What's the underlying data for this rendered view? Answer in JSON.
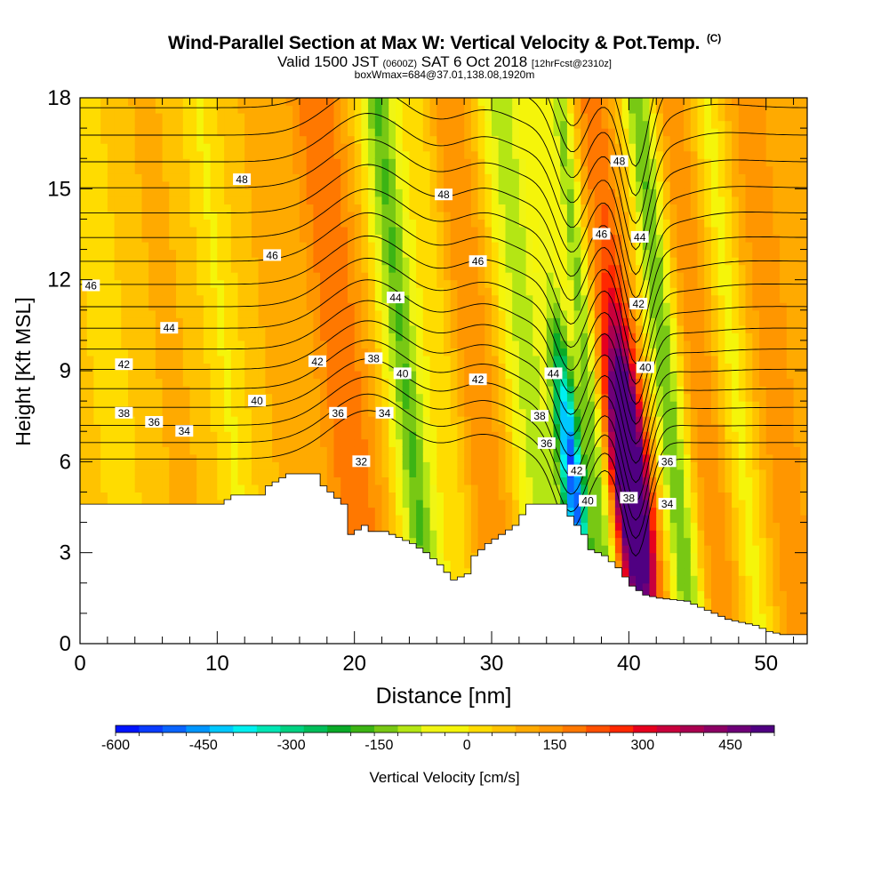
{
  "title": {
    "line1": "Wind-Parallel Section at Max W: Vertical Velocity & Pot.Temp.",
    "copyright": "(C)",
    "line2_main": "Valid 1500 JST",
    "line2_utc": "(0600Z)",
    "line2_date": "SAT 6 Oct 2018",
    "line2_fcst": "[12hrFcst@2310z]",
    "line3": "boxWmax=684@37.01,138.08,1920m"
  },
  "colors": {
    "terrain": "#ffffff",
    "contour": "#000000",
    "frame": "#000000"
  },
  "chart_data": {
    "type": "heatmap",
    "xlabel": "Distance [nm]",
    "ylabel": "Height [Kft MSL]",
    "xlim": [
      0,
      53
    ],
    "ylim": [
      0,
      18
    ],
    "x_ticks": [
      "0",
      "10",
      "20",
      "30",
      "40",
      "50"
    ],
    "y_ticks": [
      "0",
      "3",
      "6",
      "9",
      "12",
      "15",
      "18"
    ],
    "colorbar": {
      "label": "Vertical Velocity [cm/s]",
      "tick_labels": [
        "-600",
        "-450",
        "-300",
        "-150",
        "0",
        "150",
        "300",
        "450"
      ],
      "min": -600,
      "max": 525,
      "step": 37.5,
      "colors": [
        "#0014ff",
        "#0a3cff",
        "#0a64ff",
        "#0096ff",
        "#00c8ff",
        "#00f0f0",
        "#00e6b4",
        "#00d282",
        "#00be5a",
        "#0aaa28",
        "#3cb414",
        "#78c814",
        "#b4e614",
        "#f0f514",
        "#f5f50a",
        "#ffdc00",
        "#ffc300",
        "#ffaa00",
        "#ff9600",
        "#ff7800",
        "#ff5000",
        "#ff2800",
        "#e6001e",
        "#c8003c",
        "#aa0050",
        "#8c0064",
        "#6e0078",
        "#500082"
      ]
    },
    "terrain_profile": [
      [
        0,
        4.6
      ],
      [
        5,
        4.6
      ],
      [
        10,
        4.6
      ],
      [
        11,
        4.9
      ],
      [
        13,
        4.9
      ],
      [
        13.5,
        5.2
      ],
      [
        15,
        5.6
      ],
      [
        17,
        5.6
      ],
      [
        17.5,
        5.2
      ],
      [
        19,
        4.6
      ],
      [
        19.2,
        4.3
      ],
      [
        19.5,
        3.6
      ],
      [
        20.5,
        3.9
      ],
      [
        21,
        3.7
      ],
      [
        22,
        3.7
      ],
      [
        23,
        3.5
      ],
      [
        24,
        3.3
      ],
      [
        25,
        3.0
      ],
      [
        26,
        2.6
      ],
      [
        27,
        2.1
      ],
      [
        28,
        2.3
      ],
      [
        28.5,
        2.9
      ],
      [
        29.5,
        3.3
      ],
      [
        30.5,
        3.6
      ],
      [
        31.5,
        3.9
      ],
      [
        32.5,
        4.6
      ],
      [
        33.5,
        4.6
      ],
      [
        35,
        4.6
      ],
      [
        35.5,
        4.2
      ],
      [
        36.5,
        3.6
      ],
      [
        37,
        3.1
      ],
      [
        38,
        2.9
      ],
      [
        39,
        2.5
      ],
      [
        40,
        1.9
      ],
      [
        41,
        1.6
      ],
      [
        42,
        1.5
      ],
      [
        44,
        1.4
      ],
      [
        45,
        1.2
      ],
      [
        46,
        1.0
      ],
      [
        47,
        0.8
      ],
      [
        49,
        0.6
      ],
      [
        50,
        0.4
      ],
      [
        51,
        0.3
      ],
      [
        53,
        0.3
      ]
    ],
    "w_bands": [
      {
        "x": 3.0,
        "w": -60,
        "width": 2.0
      },
      {
        "x": 11.5,
        "w": -80,
        "width": 1.6
      },
      {
        "x": 20.0,
        "w": 110,
        "width": 1.8
      },
      {
        "x": 24.5,
        "w": -230,
        "width": 1.4
      },
      {
        "x": 27.5,
        "w": -60,
        "width": 1.5
      },
      {
        "x": 29.5,
        "w": 80,
        "width": 1.5
      },
      {
        "x": 33.5,
        "w": -180,
        "width": 1.6
      },
      {
        "x": 36.0,
        "w": -560,
        "width": 0.9
      },
      {
        "x": 37.8,
        "w": -200,
        "width": 0.8
      },
      {
        "x": 40.2,
        "w": 684,
        "width": 1.2
      },
      {
        "x": 43.5,
        "w": -230,
        "width": 1.1
      },
      {
        "x": 46.0,
        "w": 60,
        "width": 1.4
      },
      {
        "x": 48.5,
        "w": -90,
        "width": 1.2
      },
      {
        "x": 51.5,
        "w": 60,
        "width": 1.5
      }
    ],
    "theta_levels": [
      32,
      33,
      34,
      35,
      36,
      37,
      38,
      39,
      40,
      41,
      42,
      43,
      44,
      45,
      46,
      47,
      48,
      49,
      50
    ],
    "contour_labels": [
      {
        "x": 0.8,
        "y": 11.8,
        "text": "46"
      },
      {
        "x": 3.2,
        "y": 9.2,
        "text": "42"
      },
      {
        "x": 3.2,
        "y": 7.6,
        "text": "38"
      },
      {
        "x": 5.4,
        "y": 7.3,
        "text": "36"
      },
      {
        "x": 7.6,
        "y": 7.0,
        "text": "34"
      },
      {
        "x": 6.5,
        "y": 10.4,
        "text": "44"
      },
      {
        "x": 11.8,
        "y": 15.3,
        "text": "48"
      },
      {
        "x": 14.0,
        "y": 12.8,
        "text": "46"
      },
      {
        "x": 12.9,
        "y": 8.0,
        "text": "40"
      },
      {
        "x": 17.3,
        "y": 9.3,
        "text": "42"
      },
      {
        "x": 18.8,
        "y": 7.6,
        "text": "36"
      },
      {
        "x": 21.4,
        "y": 9.4,
        "text": "38"
      },
      {
        "x": 22.2,
        "y": 7.6,
        "text": "34"
      },
      {
        "x": 20.5,
        "y": 6.0,
        "text": "32"
      },
      {
        "x": 23.5,
        "y": 8.9,
        "text": "40"
      },
      {
        "x": 23.0,
        "y": 11.4,
        "text": "44"
      },
      {
        "x": 26.5,
        "y": 14.8,
        "text": "48"
      },
      {
        "x": 29.0,
        "y": 12.6,
        "text": "46"
      },
      {
        "x": 29.0,
        "y": 8.7,
        "text": "42"
      },
      {
        "x": 34.5,
        "y": 8.9,
        "text": "44"
      },
      {
        "x": 33.5,
        "y": 7.5,
        "text": "38"
      },
      {
        "x": 34.0,
        "y": 6.6,
        "text": "36"
      },
      {
        "x": 36.2,
        "y": 5.7,
        "text": "42"
      },
      {
        "x": 37.0,
        "y": 4.7,
        "text": "40"
      },
      {
        "x": 38.0,
        "y": 13.5,
        "text": "46"
      },
      {
        "x": 39.3,
        "y": 15.9,
        "text": "48"
      },
      {
        "x": 40.8,
        "y": 13.4,
        "text": "44"
      },
      {
        "x": 40.7,
        "y": 11.2,
        "text": "42"
      },
      {
        "x": 41.2,
        "y": 9.1,
        "text": "40"
      },
      {
        "x": 42.8,
        "y": 6.0,
        "text": "36"
      },
      {
        "x": 40.0,
        "y": 4.8,
        "text": "38"
      },
      {
        "x": 42.8,
        "y": 4.6,
        "text": "34"
      }
    ]
  }
}
